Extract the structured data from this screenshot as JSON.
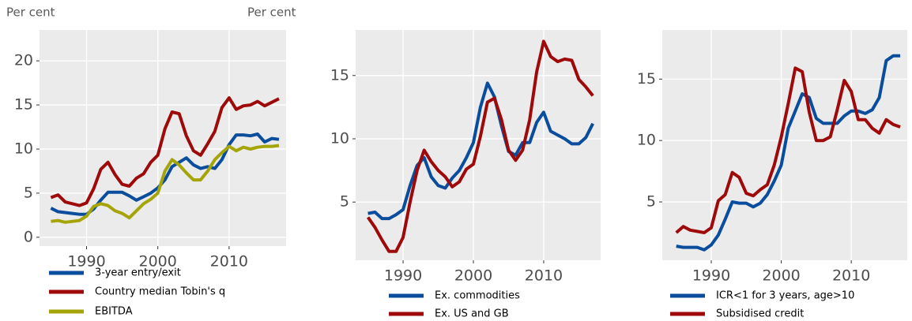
{
  "chart_data": [
    {
      "type": "line",
      "y_label": "Per cent",
      "x": [
        1985,
        1986,
        1987,
        1988,
        1989,
        1990,
        1991,
        1992,
        1993,
        1994,
        1995,
        1996,
        1997,
        1998,
        1999,
        2000,
        2001,
        2002,
        2003,
        2004,
        2005,
        2006,
        2007,
        2008,
        2009,
        2010,
        2011,
        2012,
        2013,
        2014,
        2015,
        2016,
        2017
      ],
      "xlim": [
        1983.4,
        2018
      ],
      "xticks": [
        1990,
        2000,
        2010
      ],
      "ylim": [
        -1,
        23.5
      ],
      "yticks": [
        0,
        5,
        10,
        15,
        20
      ],
      "grid": true,
      "series": [
        {
          "name": "3-year entry/exit",
          "color": "#0a4d9c",
          "values": [
            3.3,
            2.9,
            2.8,
            2.7,
            2.6,
            2.6,
            3.2,
            4.2,
            5.1,
            5.1,
            5.1,
            4.7,
            4.2,
            4.6,
            5.0,
            5.6,
            6.5,
            8.0,
            8.5,
            9.0,
            8.2,
            7.8,
            8.0,
            7.8,
            8.8,
            10.5,
            11.6,
            11.6,
            11.5,
            11.7,
            10.8,
            11.2,
            11.1
          ]
        },
        {
          "name": "Country median Tobin's q",
          "color": "#9e0a0a",
          "values": [
            4.5,
            4.8,
            4.0,
            3.8,
            3.6,
            3.9,
            5.5,
            7.7,
            8.5,
            7.1,
            6.0,
            5.8,
            6.7,
            7.2,
            8.5,
            9.3,
            12.3,
            14.2,
            14.0,
            11.5,
            9.8,
            9.3,
            10.6,
            12.0,
            14.7,
            15.8,
            14.5,
            14.9,
            15.0,
            15.4,
            14.9,
            15.3,
            15.7
          ]
        },
        {
          "name": "EBITDA",
          "color": "#a5a50a",
          "values": [
            1.8,
            1.9,
            1.7,
            1.8,
            1.9,
            2.4,
            3.5,
            3.8,
            3.6,
            3.0,
            2.7,
            2.2,
            3.0,
            3.8,
            4.3,
            5.0,
            7.5,
            8.8,
            8.2,
            7.3,
            6.5,
            6.5,
            7.5,
            8.8,
            9.6,
            10.3,
            9.8,
            10.2,
            10.0,
            10.2,
            10.3,
            10.3,
            10.4
          ]
        }
      ]
    },
    {
      "type": "line",
      "y_label": "Per cent",
      "x": [
        1985,
        1986,
        1987,
        1988,
        1989,
        1990,
        1991,
        1992,
        1993,
        1994,
        1995,
        1996,
        1997,
        1998,
        1999,
        2000,
        2001,
        2002,
        2003,
        2004,
        2005,
        2006,
        2007,
        2008,
        2009,
        2010,
        2011,
        2012,
        2013,
        2014,
        2015,
        2016,
        2017
      ],
      "xlim": [
        1983.25,
        2018.1
      ],
      "xticks": [
        1990,
        2000,
        2010
      ],
      "ylim": [
        0.4,
        18.6
      ],
      "yticks": [
        5,
        10,
        15
      ],
      "grid": true,
      "series": [
        {
          "name": "Ex. commodities",
          "color": "#0a4d9c",
          "values": [
            4.1,
            4.2,
            3.7,
            3.7,
            4.0,
            4.4,
            6.3,
            7.9,
            8.5,
            7.0,
            6.3,
            6.1,
            6.9,
            7.5,
            8.5,
            9.7,
            12.5,
            14.4,
            13.3,
            11.0,
            9.0,
            8.7,
            9.7,
            9.7,
            11.3,
            12.1,
            10.6,
            10.3,
            10.0,
            9.6,
            9.6,
            10.1,
            11.2
          ]
        },
        {
          "name": "Ex. US and GB",
          "color": "#9e0a0a",
          "values": [
            3.8,
            3.0,
            2.0,
            1.1,
            1.1,
            2.2,
            5.0,
            7.5,
            9.1,
            8.2,
            7.5,
            7.0,
            6.2,
            6.6,
            7.6,
            8.0,
            10.2,
            12.9,
            13.2,
            11.5,
            9.1,
            8.3,
            9.1,
            11.5,
            15.3,
            17.7,
            16.5,
            16.1,
            16.3,
            16.2,
            14.7,
            14.1,
            13.4
          ]
        }
      ]
    },
    {
      "type": "line",
      "x": [
        1985,
        1986,
        1987,
        1988,
        1989,
        1990,
        1991,
        1992,
        1993,
        1994,
        1995,
        1996,
        1997,
        1998,
        1999,
        2000,
        2001,
        2002,
        2003,
        2004,
        2005,
        2006,
        2007,
        2008,
        2009,
        2010,
        2011,
        2012,
        2013,
        2014,
        2015,
        2016,
        2017
      ],
      "xlim": [
        1983,
        2018
      ],
      "xticks": [
        1990,
        2000,
        2010
      ],
      "ylim": [
        0.25,
        19.0
      ],
      "yticks": [
        5,
        10,
        15
      ],
      "grid": true,
      "series": [
        {
          "name": "ICR<1 for 3 years, age>10",
          "color": "#0a4d9c",
          "values": [
            1.4,
            1.3,
            1.3,
            1.3,
            1.1,
            1.5,
            2.3,
            3.6,
            5.0,
            4.9,
            4.9,
            4.6,
            4.9,
            5.6,
            6.7,
            8.0,
            11.0,
            12.4,
            13.8,
            13.5,
            11.8,
            11.4,
            11.4,
            11.4,
            12.0,
            12.4,
            12.4,
            12.2,
            12.5,
            13.5,
            16.5,
            16.9,
            16.9
          ]
        },
        {
          "name": "Subsidised credit",
          "color": "#9e0a0a",
          "values": [
            2.5,
            3.0,
            2.7,
            2.6,
            2.5,
            2.9,
            5.1,
            5.6,
            7.4,
            7.0,
            5.7,
            5.5,
            6.0,
            6.4,
            8.0,
            10.3,
            13.0,
            15.9,
            15.6,
            12.3,
            10.0,
            10.0,
            10.3,
            12.5,
            14.9,
            14.0,
            11.7,
            11.7,
            11.0,
            10.6,
            11.7,
            11.3,
            11.1
          ]
        }
      ]
    }
  ]
}
